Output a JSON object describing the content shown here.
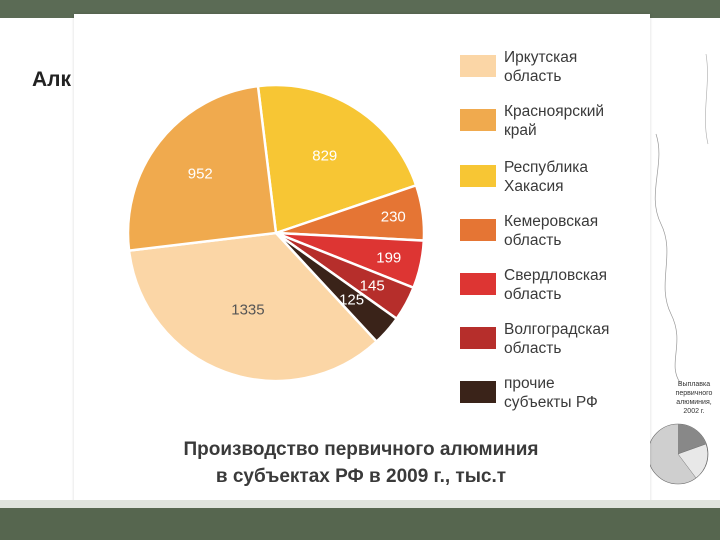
{
  "background_slide": {
    "title": "Алк",
    "thumb_caption": "Выплавка\nпервичного\nалюминия, 2002 г."
  },
  "colors": {
    "top_bar": "#5b6b55",
    "bottom_bar": "#56664f"
  },
  "chart_data": {
    "type": "pie",
    "title": "Производство первичного алюминия\nв субъектах РФ в 2009 г., тыс.т",
    "unit": "тыс.т",
    "slices": [
      {
        "name": "Иркутская\nобласть",
        "value": 1335,
        "label": "1335",
        "color": "#fbd6a6"
      },
      {
        "name": "Красноярский\nкрай",
        "value": 952,
        "label": "952",
        "color": "#f0aa4e"
      },
      {
        "name": "Республика\nХакасия",
        "value": 829,
        "label": "829",
        "color": "#f7c634"
      },
      {
        "name": "Кемеровская\nобласть",
        "value": 230,
        "label": "230",
        "color": "#e57534"
      },
      {
        "name": "Свердловская\nобласть",
        "value": 199,
        "label": "199",
        "color": "#dd3533"
      },
      {
        "name": "Волгоградская\nобласть",
        "value": 145,
        "label": "145",
        "color": "#b62e2b"
      },
      {
        "name": "прочие\nсубъекты РФ",
        "value": 125,
        "label": "125",
        "color": "#3a2319"
      }
    ],
    "legend_position": "right"
  }
}
